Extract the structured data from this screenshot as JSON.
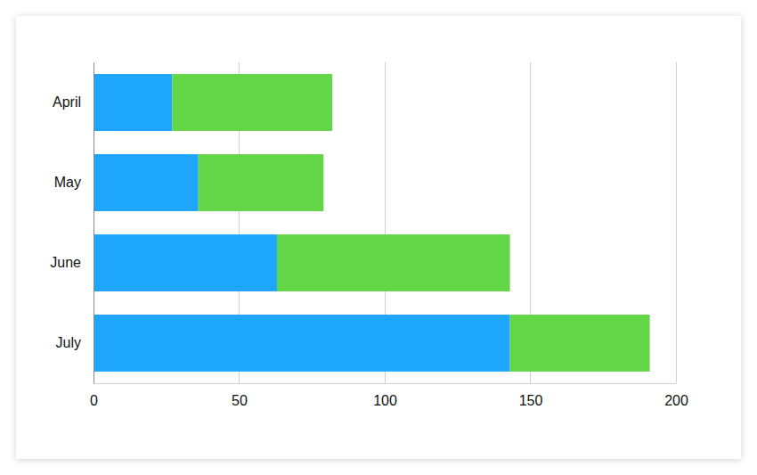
{
  "chart_data": {
    "type": "bar",
    "orientation": "horizontal",
    "stacked": true,
    "categories": [
      "April",
      "May",
      "June",
      "July"
    ],
    "series": [
      {
        "color": "#1ea5fc",
        "values": [
          27,
          36,
          63,
          143
        ]
      },
      {
        "color": "#63d647",
        "values": [
          55,
          43,
          80,
          48
        ]
      }
    ],
    "xlim": [
      0,
      200
    ],
    "xticks": [
      0,
      50,
      100,
      150,
      200
    ],
    "grid": true
  }
}
